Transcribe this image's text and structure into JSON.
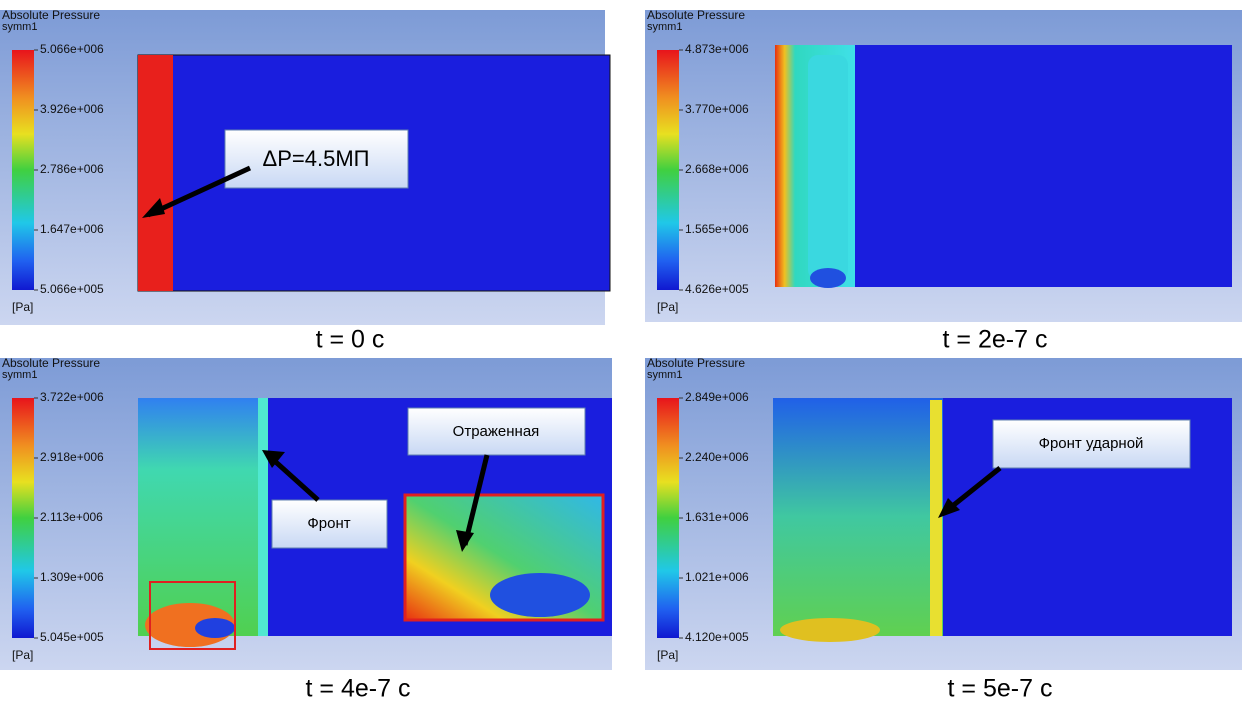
{
  "panels": [
    {
      "title": "Absolute Pressure",
      "subtitle": "symm1",
      "legend": [
        "5.066e+006",
        "3.926e+006",
        "2.786e+006",
        "1.647e+006",
        "5.066e+005"
      ],
      "unit": "[Pa]",
      "caption": "t = 0 c",
      "annotations": [
        "ΔP=4.5МП"
      ]
    },
    {
      "title": "Absolute Pressure",
      "subtitle": "symm1",
      "legend": [
        "4.873e+006",
        "3.770e+006",
        "2.668e+006",
        "1.565e+006",
        "4.626e+005"
      ],
      "unit": "[Pa]",
      "caption": "t = 2e-7 c",
      "annotations": []
    },
    {
      "title": "Absolute Pressure",
      "subtitle": "symm1",
      "legend": [
        "3.722e+006",
        "2.918e+006",
        "2.113e+006",
        "1.309e+006",
        "5.045e+005"
      ],
      "unit": "[Pa]",
      "caption": "t = 4e-7 c",
      "annotations": [
        "Фронт",
        "Отраженная"
      ]
    },
    {
      "title": "Absolute Pressure",
      "subtitle": "symm1",
      "legend": [
        "2.849e+006",
        "2.240e+006",
        "1.631e+006",
        "1.021e+006",
        "4.120e+005"
      ],
      "unit": "[Pa]",
      "caption": "t = 5e-7 c",
      "annotations": [
        "Фронт ударной"
      ]
    }
  ]
}
